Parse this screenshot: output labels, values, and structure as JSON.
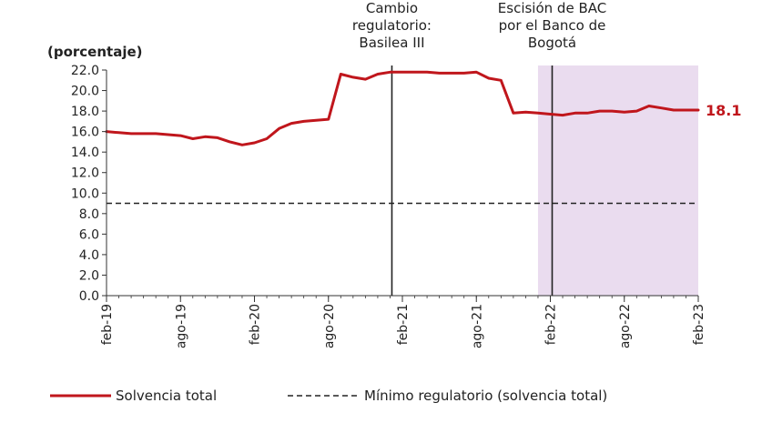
{
  "chart_data": {
    "type": "line",
    "ylabel": "(porcentaje)",
    "ylim": [
      0,
      22
    ],
    "yticks": [
      0,
      2,
      4,
      6,
      8,
      10,
      12,
      14,
      16,
      18,
      20,
      22
    ],
    "ytick_labels": [
      "0.0",
      "2.0",
      "4.0",
      "6.0",
      "8.0",
      "10.0",
      "12.0",
      "14.0",
      "16.0",
      "18.0",
      "20.0",
      "22.0"
    ],
    "x_start": "2019-02",
    "x_end": "2023-02",
    "xtick_labels": [
      "feb-19",
      "ago-19",
      "feb-20",
      "ago-20",
      "feb-21",
      "ago-21",
      "feb-22",
      "ago-22",
      "feb-23"
    ],
    "xtick_months": [
      "2019-02",
      "2019-08",
      "2020-02",
      "2020-08",
      "2021-02",
      "2021-08",
      "2022-02",
      "2022-08",
      "2023-02"
    ],
    "grid": false,
    "legend_position": "bottom",
    "colors": {
      "series": "#c0161c",
      "minimum": "#222222",
      "shade": "#eadcef",
      "events": "#222222"
    },
    "shaded_region": {
      "from": "2022-01",
      "to": "2023-02"
    },
    "annotations": [
      {
        "x": "2021-01",
        "lines": [
          "Cambio",
          "regulatorio:",
          "Basilea III"
        ]
      },
      {
        "x": "2022-02",
        "lines": [
          "Escisión de BAC",
          "por el Banco de",
          "Bogotá"
        ]
      }
    ],
    "last_value_label": "18.1",
    "series": [
      {
        "name": "Solvencia total",
        "style": "solid",
        "x": [
          "2019-02",
          "2019-03",
          "2019-04",
          "2019-05",
          "2019-06",
          "2019-07",
          "2019-08",
          "2019-09",
          "2019-10",
          "2019-11",
          "2019-12",
          "2020-01",
          "2020-02",
          "2020-03",
          "2020-04",
          "2020-05",
          "2020-06",
          "2020-07",
          "2020-08",
          "2020-09",
          "2020-10",
          "2020-11",
          "2020-12",
          "2021-01",
          "2021-02",
          "2021-03",
          "2021-04",
          "2021-05",
          "2021-06",
          "2021-07",
          "2021-08",
          "2021-09",
          "2021-10",
          "2021-11",
          "2021-12",
          "2022-01",
          "2022-02",
          "2022-03",
          "2022-04",
          "2022-05",
          "2022-06",
          "2022-07",
          "2022-08",
          "2022-09",
          "2022-10",
          "2022-11",
          "2022-12",
          "2023-01",
          "2023-02"
        ],
        "values": [
          16.0,
          15.9,
          15.8,
          15.8,
          15.8,
          15.7,
          15.6,
          15.3,
          15.5,
          15.4,
          15.0,
          14.7,
          14.9,
          15.3,
          16.3,
          16.8,
          17.0,
          17.1,
          17.2,
          21.6,
          21.3,
          21.1,
          21.6,
          21.8,
          21.8,
          21.8,
          21.8,
          21.7,
          21.7,
          21.7,
          21.8,
          21.2,
          21.0,
          17.8,
          17.9,
          17.8,
          17.7,
          17.6,
          17.8,
          17.8,
          18.0,
          18.0,
          17.9,
          18.0,
          18.5,
          18.3,
          18.1,
          18.1,
          18.1
        ]
      },
      {
        "name": "Mínimo regulatorio (solvencia total)",
        "style": "dashed",
        "x": [
          "2019-02",
          "2023-02"
        ],
        "values": [
          9.0,
          9.0
        ]
      }
    ]
  }
}
